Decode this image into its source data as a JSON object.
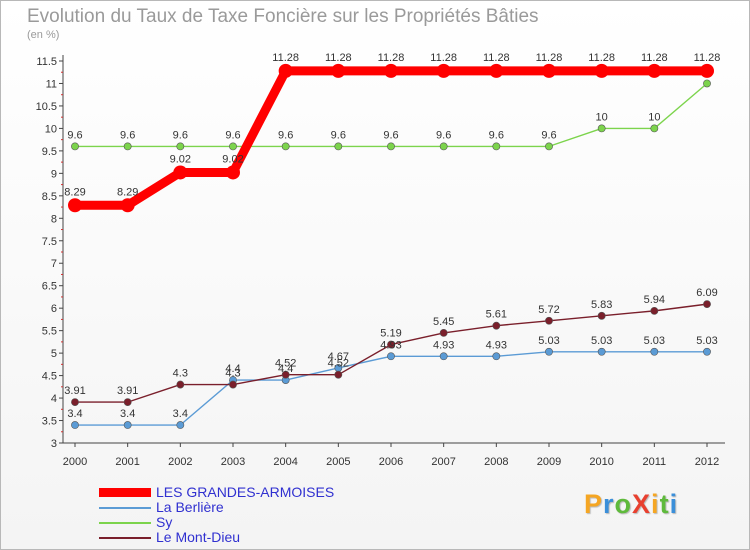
{
  "chart_data": {
    "type": "line",
    "title": "Evolution du Taux de Taxe Foncière sur les Propriétés Bâties",
    "subtitle": "(en %)",
    "x": [
      2000,
      2001,
      2002,
      2003,
      2004,
      2005,
      2006,
      2007,
      2008,
      2009,
      2010,
      2011,
      2012
    ],
    "x_tick_labels": [
      "2000",
      "2001",
      "2002",
      "2003",
      "2004",
      "2005",
      "2006",
      "2007",
      "2008",
      "2009",
      "2010",
      "2011",
      "2012"
    ],
    "ylim": [
      3,
      11.5
    ],
    "y_ticks": [
      3,
      3.5,
      4,
      4.5,
      5,
      5.5,
      6,
      6.5,
      7,
      7.5,
      8,
      8.5,
      9,
      9.5,
      10,
      10.5,
      11,
      11.5
    ],
    "y_tick_labels": [
      "3",
      "3.5",
      "4",
      "4.5",
      "5",
      "5.5",
      "6",
      "6.5",
      "7",
      "7.5",
      "8",
      "8.5",
      "9",
      "9.5",
      "10",
      "10.5",
      "11",
      "11.5"
    ],
    "grid": false,
    "legend_position": "bottom-left",
    "series": [
      {
        "name": "LES GRANDES-ARMOISES",
        "color": "#ff0000",
        "emphasis": true,
        "values": [
          8.29,
          8.29,
          9.02,
          9.02,
          11.28,
          11.28,
          11.28,
          11.28,
          11.28,
          11.28,
          11.28,
          11.28,
          11.28
        ],
        "labels": [
          "8.29",
          "8.29",
          "9.02",
          "9.02",
          "11.28",
          "11.28",
          "11.28",
          "11.28",
          "11.28",
          "11.28",
          "11.28",
          "11.28",
          "11.28"
        ]
      },
      {
        "name": "La Berlière",
        "color": "#5b9bd5",
        "emphasis": false,
        "values": [
          3.4,
          3.4,
          3.4,
          4.4,
          4.4,
          4.67,
          4.93,
          4.93,
          4.93,
          5.03,
          5.03,
          5.03,
          5.03
        ],
        "labels": [
          "3.4",
          "3.4",
          "3.4",
          "4.4",
          "4.4",
          "4.67",
          "4.93",
          "4.93",
          "4.93",
          "5.03",
          "5.03",
          "5.03",
          "5.03"
        ]
      },
      {
        "name": "Sy",
        "color": "#7cd44c",
        "emphasis": false,
        "values": [
          9.6,
          9.6,
          9.6,
          9.6,
          9.6,
          9.6,
          9.6,
          9.6,
          9.6,
          9.6,
          10,
          10,
          11
        ],
        "labels": [
          "9.6",
          "9.6",
          "9.6",
          "9.6",
          "9.6",
          "9.6",
          "9.6",
          "9.6",
          "9.6",
          "9.6",
          "10",
          "10",
          ""
        ]
      },
      {
        "name": "Le Mont-Dieu",
        "color": "#7a1f2b",
        "emphasis": false,
        "values": [
          3.91,
          3.91,
          4.3,
          4.3,
          4.52,
          4.52,
          5.19,
          5.45,
          5.61,
          5.72,
          5.83,
          5.94,
          6.09
        ],
        "labels": [
          "3.91",
          "3.91",
          "4.3",
          "4.3",
          "4.52",
          "4.52",
          "5.19",
          "5.45",
          "5.61",
          "5.72",
          "5.83",
          "5.94",
          "6.09"
        ]
      }
    ]
  },
  "logo": {
    "text": "ProXiti",
    "colors": [
      "#f5a623",
      "#3b8fd9",
      "#5fba3c",
      "#e8402f",
      "#f5a623",
      "#5fba3c",
      "#3b8fd9"
    ]
  }
}
